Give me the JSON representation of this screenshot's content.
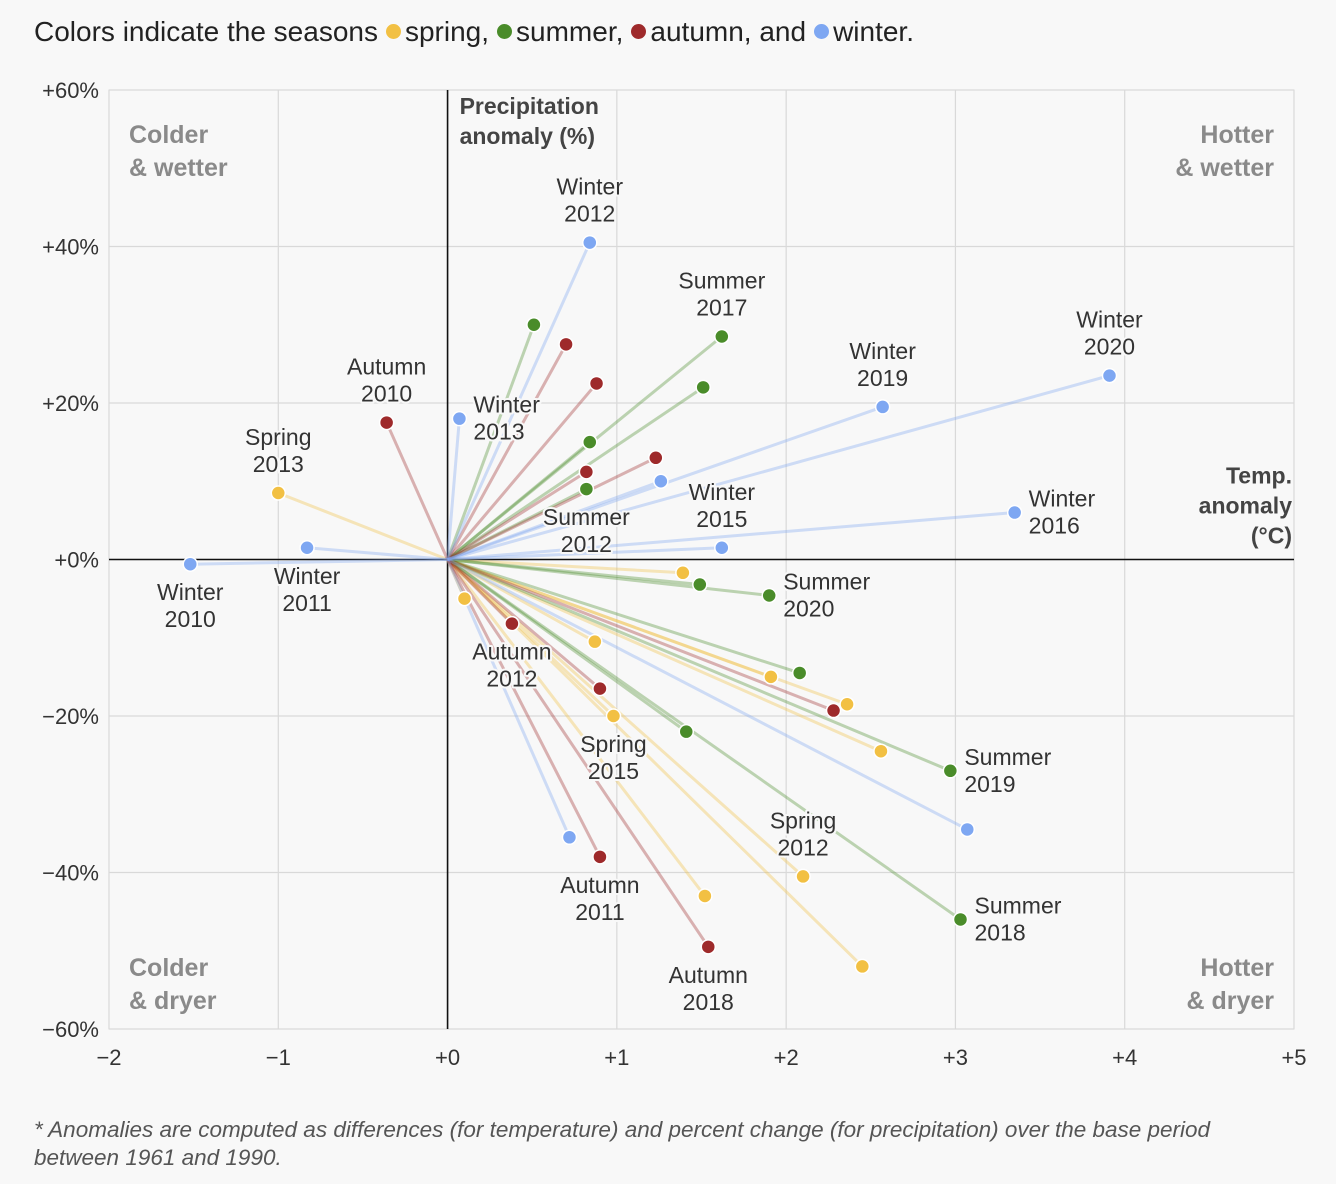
{
  "legend": {
    "intro": "Colors indicate the seasons",
    "items": [
      {
        "label": "spring,",
        "color": "#f2c043"
      },
      {
        "label": "summer,",
        "color": "#4a8c2a"
      },
      {
        "label": "autumn, and",
        "color": "#9e2a2b"
      },
      {
        "label": "winter.",
        "color": "#7ea7f2"
      }
    ]
  },
  "footnote": "* Anomalies are computed as differences (for temperature) and percent change (for precipitation) over the base period between 1961 and 1990.",
  "chart_data": {
    "type": "scatter",
    "xlim": [
      -2,
      5
    ],
    "ylim": [
      -60,
      60
    ],
    "x_ticks": [
      {
        "value": -2,
        "label": "−2"
      },
      {
        "value": -1,
        "label": "−1"
      },
      {
        "value": 0,
        "label": "+0"
      },
      {
        "value": 1,
        "label": "+1"
      },
      {
        "value": 2,
        "label": "+2"
      },
      {
        "value": 3,
        "label": "+3"
      },
      {
        "value": 4,
        "label": "+4"
      },
      {
        "value": 5,
        "label": "+5"
      }
    ],
    "y_ticks": [
      {
        "value": 60,
        "label": "+60%"
      },
      {
        "value": 40,
        "label": "+40%"
      },
      {
        "value": 20,
        "label": "+20%"
      },
      {
        "value": 0,
        "label": "+0%"
      },
      {
        "value": -20,
        "label": "−20%"
      },
      {
        "value": -40,
        "label": "−40%"
      },
      {
        "value": -60,
        "label": "−60%"
      }
    ],
    "grid": true,
    "xlabel": [
      "Temp.",
      "anomaly",
      "(°C)"
    ],
    "ylabel": [
      "Precipitation",
      "anomaly (%)"
    ],
    "quadrant_labels": {
      "top_left": [
        "Colder",
        "& wetter"
      ],
      "top_right": [
        "Hotter",
        "& wetter"
      ],
      "bottom_left": [
        "Colder",
        "& dryer"
      ],
      "bottom_right": [
        "Hotter",
        "& dryer"
      ]
    },
    "series": [
      {
        "name": "spring",
        "color": "#f2c043",
        "points": [
          {
            "x": -1.0,
            "y": 8.5,
            "label": [
              "Spring",
              "2013"
            ],
            "pos": "above"
          },
          {
            "x": 0.1,
            "y": -5.0
          },
          {
            "x": 0.87,
            "y": -10.5
          },
          {
            "x": 0.98,
            "y": -20.0,
            "label": [
              "Spring",
              "2015"
            ],
            "pos": "below"
          },
          {
            "x": 1.39,
            "y": -1.7
          },
          {
            "x": 1.52,
            "y": -43.0
          },
          {
            "x": 1.91,
            "y": -15.0
          },
          {
            "x": 2.1,
            "y": -40.5,
            "label": [
              "Spring",
              "2012"
            ],
            "pos": "above"
          },
          {
            "x": 2.36,
            "y": -18.5
          },
          {
            "x": 2.45,
            "y": -52.0
          },
          {
            "x": 2.56,
            "y": -24.5
          }
        ]
      },
      {
        "name": "summer",
        "color": "#4a8c2a",
        "points": [
          {
            "x": 0.51,
            "y": 30.0
          },
          {
            "x": 0.82,
            "y": 9.0,
            "label": [
              "Summer",
              "2012"
            ],
            "pos": "below"
          },
          {
            "x": 0.84,
            "y": 15.0
          },
          {
            "x": 1.49,
            "y": -3.2
          },
          {
            "x": 1.51,
            "y": 22.0
          },
          {
            "x": 1.41,
            "y": -22.0
          },
          {
            "x": 1.62,
            "y": 28.5,
            "label": [
              "Summer",
              "2017"
            ],
            "pos": "above"
          },
          {
            "x": 1.9,
            "y": -4.6,
            "label": [
              "Summer",
              "2020"
            ],
            "pos": "right"
          },
          {
            "x": 2.08,
            "y": -14.5
          },
          {
            "x": 2.97,
            "y": -27.0,
            "label": [
              "Summer",
              "2019"
            ],
            "pos": "right"
          },
          {
            "x": 3.03,
            "y": -46.0,
            "label": [
              "Summer",
              "2018"
            ],
            "pos": "right"
          }
        ]
      },
      {
        "name": "autumn",
        "color": "#9e2a2b",
        "points": [
          {
            "x": -0.36,
            "y": 17.5,
            "label": [
              "Autumn",
              "2010"
            ],
            "pos": "above"
          },
          {
            "x": 0.38,
            "y": -8.2,
            "label": [
              "Autumn",
              "2012"
            ],
            "pos": "below"
          },
          {
            "x": 0.7,
            "y": 27.5
          },
          {
            "x": 0.82,
            "y": 11.2
          },
          {
            "x": 0.88,
            "y": 22.5
          },
          {
            "x": 0.9,
            "y": -16.5
          },
          {
            "x": 0.9,
            "y": -38.0,
            "label": [
              "Autumn",
              "2011"
            ],
            "pos": "below"
          },
          {
            "x": 1.23,
            "y": 13.0
          },
          {
            "x": 1.54,
            "y": -49.5,
            "label": [
              "Autumn",
              "2018"
            ],
            "pos": "below"
          },
          {
            "x": 2.28,
            "y": -19.3
          }
        ]
      },
      {
        "name": "winter",
        "color": "#7ea7f2",
        "points": [
          {
            "x": -1.52,
            "y": -0.6,
            "label": [
              "Winter",
              "2010"
            ],
            "pos": "below"
          },
          {
            "x": -0.83,
            "y": 1.5,
            "label": [
              "Winter",
              "2011"
            ],
            "pos": "below"
          },
          {
            "x": 0.07,
            "y": 18.0,
            "label": [
              "Winter",
              "2013"
            ],
            "pos": "right"
          },
          {
            "x": 0.72,
            "y": -35.5
          },
          {
            "x": 0.84,
            "y": 40.5,
            "label": [
              "Winter",
              "2012"
            ],
            "pos": "above"
          },
          {
            "x": 1.26,
            "y": 10.0
          },
          {
            "x": 1.62,
            "y": 1.5,
            "label": [
              "Winter",
              "2015"
            ],
            "pos": "above"
          },
          {
            "x": 2.57,
            "y": 19.5,
            "label": [
              "Winter",
              "2019"
            ],
            "pos": "above"
          },
          {
            "x": 3.07,
            "y": -34.5
          },
          {
            "x": 3.35,
            "y": 6.0,
            "label": [
              "Winter",
              "2016"
            ],
            "pos": "right"
          },
          {
            "x": 3.91,
            "y": 23.5,
            "label": [
              "Winter",
              "2020"
            ],
            "pos": "above"
          }
        ]
      }
    ]
  }
}
